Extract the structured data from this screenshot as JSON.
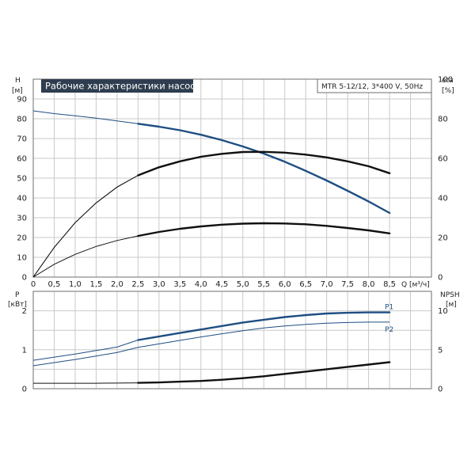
{
  "chart_data": [
    {
      "type": "line",
      "title": "Рабочие характеристики насоса",
      "subtitle": "MTR 5-12/12, 3*400 V, 50Hz",
      "xlabel": "Q [м³/ч]",
      "ylabel_left": [
        "H",
        "[м]"
      ],
      "ylabel_right": [
        "eta",
        "[%]"
      ],
      "xlim": [
        0,
        9.5
      ],
      "ylim_left": [
        0,
        100
      ],
      "ylim_right": [
        0,
        100
      ],
      "yticks_left": [
        0,
        10,
        20,
        30,
        40,
        50,
        60,
        70,
        80,
        90
      ],
      "yticks_right": [
        0,
        20,
        40,
        60,
        80,
        100
      ],
      "xticks": [
        "0",
        "0,5",
        "1,0",
        "1,5",
        "2,0",
        "2,5",
        "3,0",
        "3,5",
        "4,0",
        "4,5",
        "5,0",
        "5,5",
        "6,0",
        "6,5",
        "7,0",
        "7,5",
        "8,0",
        "8,5"
      ],
      "grid": true,
      "series": [
        {
          "color": "#1f4e82",
          "axis": "left",
          "style": "thin-then-thick",
          "thick_from": 2.5,
          "x": [
            0,
            0.5,
            1,
            1.5,
            2,
            2.5,
            3,
            3.5,
            4,
            4.5,
            5,
            5.5,
            6,
            6.5,
            7,
            7.5,
            8,
            8.5
          ],
          "y": [
            84,
            82.6,
            81.5,
            80.3,
            78.9,
            77.5,
            76,
            74.2,
            71.9,
            69.2,
            66,
            62.4,
            58.3,
            53.7,
            48.8,
            43.6,
            38.2,
            32.4
          ]
        },
        {
          "color": "#111111",
          "axis": "right",
          "style": "thin-then-thick",
          "thick_from": 2.5,
          "x": [
            0,
            0.5,
            1,
            1.5,
            2,
            2.5,
            3,
            3.5,
            4,
            4.5,
            5,
            5.5,
            6,
            6.5,
            7,
            7.5,
            8,
            8.5
          ],
          "y": [
            0,
            15,
            27.5,
            37.5,
            45.5,
            51.4,
            55.5,
            58.5,
            60.8,
            62.3,
            63.2,
            63.3,
            62.9,
            61.9,
            60.5,
            58.5,
            56,
            52.5
          ]
        },
        {
          "color": "#111111",
          "axis": "left",
          "style": "thin-then-thick",
          "thick_from": 2.5,
          "x": [
            0,
            0.5,
            1,
            1.5,
            2,
            2.5,
            3,
            3.5,
            4,
            4.5,
            5,
            5.5,
            6,
            6.5,
            7,
            7.5,
            8,
            8.5
          ],
          "y": [
            0,
            6.5,
            11.5,
            15.5,
            18.5,
            20.8,
            22.8,
            24.4,
            25.6,
            26.5,
            27,
            27.2,
            27.1,
            26.7,
            25.9,
            24.8,
            23.6,
            22.1
          ]
        }
      ]
    },
    {
      "type": "line",
      "xlabel": "",
      "ylabel_left": [
        "P",
        "[кВт]"
      ],
      "ylabel_right": [
        "NPSH",
        "[м]"
      ],
      "xlim": [
        0,
        9.5
      ],
      "ylim_left": [
        0,
        2.5
      ],
      "ylim_right": [
        0,
        12.5
      ],
      "yticks_left": [
        0,
        1,
        2
      ],
      "yticks_right": [
        0,
        5,
        10
      ],
      "grid": true,
      "series": [
        {
          "name": "P1",
          "color": "#1f4e82",
          "axis": "left",
          "style": "thin-then-thick",
          "thick_from": 2.5,
          "x": [
            0,
            0.5,
            1,
            1.5,
            2,
            2.5,
            3,
            3.5,
            4,
            4.5,
            5,
            5.5,
            6,
            6.5,
            7,
            7.5,
            8,
            8.5
          ],
          "y": [
            0.73,
            0.81,
            0.89,
            0.98,
            1.07,
            1.25,
            1.34,
            1.43,
            1.52,
            1.61,
            1.7,
            1.77,
            1.84,
            1.89,
            1.93,
            1.95,
            1.96,
            1.96
          ]
        },
        {
          "name": "P2",
          "color": "#1f4e82",
          "axis": "left",
          "style": "thin",
          "thick_from": 99,
          "x": [
            0,
            0.5,
            1,
            1.5,
            2,
            2.5,
            3,
            3.5,
            4,
            4.5,
            5,
            5.5,
            6,
            6.5,
            7,
            7.5,
            8,
            8.5
          ],
          "y": [
            0.59,
            0.67,
            0.75,
            0.84,
            0.93,
            1.06,
            1.15,
            1.24,
            1.33,
            1.41,
            1.49,
            1.56,
            1.61,
            1.65,
            1.68,
            1.7,
            1.71,
            1.71
          ]
        },
        {
          "color": "#111111",
          "axis": "right",
          "style": "thin-then-thick",
          "thick_from": 2.5,
          "x": [
            0,
            0.5,
            1,
            1.5,
            2,
            2.5,
            3,
            3.5,
            4,
            4.5,
            5,
            5.5,
            6,
            6.5,
            7,
            7.5,
            8,
            8.5
          ],
          "y": [
            0.7,
            0.7,
            0.7,
            0.7,
            0.72,
            0.75,
            0.8,
            0.9,
            1.0,
            1.15,
            1.35,
            1.6,
            1.9,
            2.2,
            2.5,
            2.8,
            3.1,
            3.4
          ]
        }
      ]
    }
  ]
}
